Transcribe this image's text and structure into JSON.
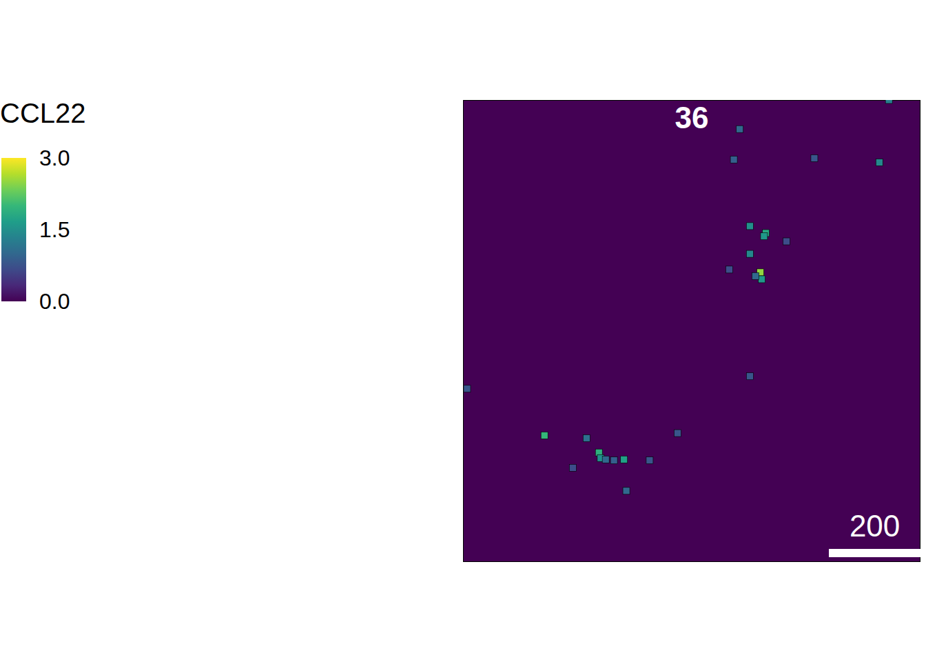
{
  "chart_data": {
    "type": "spatial",
    "title": "36",
    "x": [
      605,
      931,
      592,
      768,
      910,
      627,
      662,
      658,
      707,
      627,
      650,
      653,
      639,
      582,
      627,
      9,
      178,
      270,
      297,
      301,
      330,
      352,
      312,
      240,
      408,
      469,
      357
    ],
    "y": [
      937,
      1000,
      871,
      874,
      865,
      727,
      712,
      705,
      694,
      667,
      627,
      612,
      619,
      633,
      402,
      375,
      274,
      268,
      237,
      225,
      220,
      222,
      222,
      204,
      220,
      279,
      154
    ],
    "values": [
      1.0,
      1.3,
      0.9,
      0.8,
      1.4,
      1.5,
      1.8,
      1.6,
      0.7,
      1.4,
      2.5,
      1.6,
      1.0,
      0.7,
      0.8,
      0.8,
      2.0,
      1.1,
      1.9,
      1.5,
      0.9,
      1.7,
      1.0,
      0.7,
      0.8,
      0.8,
      1.0
    ],
    "xlim": [
      0,
      1000
    ],
    "ylim": [
      0,
      1000
    ],
    "tick_labels": false,
    "colorbar": {
      "label": "CCL22",
      "range": [
        0,
        3
      ],
      "ticks": [
        {
          "value": 0,
          "label": "0.0"
        },
        1.5,
        {
          "value": 3,
          "label": "3.0"
        }
      ]
    },
    "scale_bar": 200
  }
}
